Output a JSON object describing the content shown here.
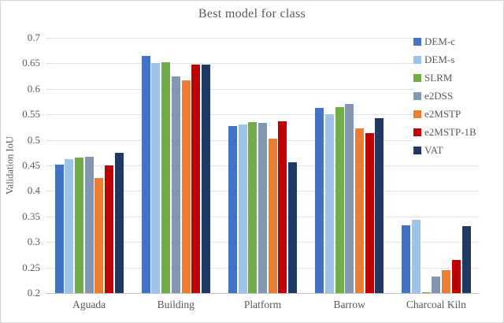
{
  "chart_data": {
    "type": "bar",
    "title": "Best model for class",
    "ylabel": "Validation IoU",
    "xlabel": "",
    "ylim": [
      0.2,
      0.7
    ],
    "ytick_labels": [
      "0.7",
      "0.65",
      "0.6",
      "0.55",
      "0.5",
      "0.45",
      "0.4",
      "0.35",
      "0.3",
      "0.25",
      "0.2"
    ],
    "categories": [
      "Aguada",
      "Building",
      "Platform",
      "Barrow",
      "Charcoal Kiln"
    ],
    "series": [
      {
        "name": "DEM-c",
        "color": "#4472C4",
        "values": [
          0.452,
          0.665,
          0.527,
          0.562,
          0.333
        ]
      },
      {
        "name": "DEM-s",
        "color": "#9DC3E6",
        "values": [
          0.463,
          0.65,
          0.53,
          0.55,
          0.343
        ]
      },
      {
        "name": "SLRM",
        "color": "#70AD47",
        "values": [
          0.465,
          0.652,
          0.535,
          0.565,
          0.202
        ]
      },
      {
        "name": "e2DSS",
        "color": "#8497B0",
        "values": [
          0.467,
          0.625,
          0.533,
          0.57,
          0.232
        ]
      },
      {
        "name": "e2MSTP",
        "color": "#ED7D31",
        "values": [
          0.425,
          0.617,
          0.503,
          0.523,
          0.245
        ]
      },
      {
        "name": "e2MSTP-1B",
        "color": "#C00000",
        "values": [
          0.45,
          0.648,
          0.537,
          0.513,
          0.265
        ]
      },
      {
        "name": "VAT",
        "color": "#1F3864",
        "values": [
          0.475,
          0.647,
          0.456,
          0.542,
          0.332
        ]
      }
    ],
    "legend_position": "right",
    "grid": true
  }
}
